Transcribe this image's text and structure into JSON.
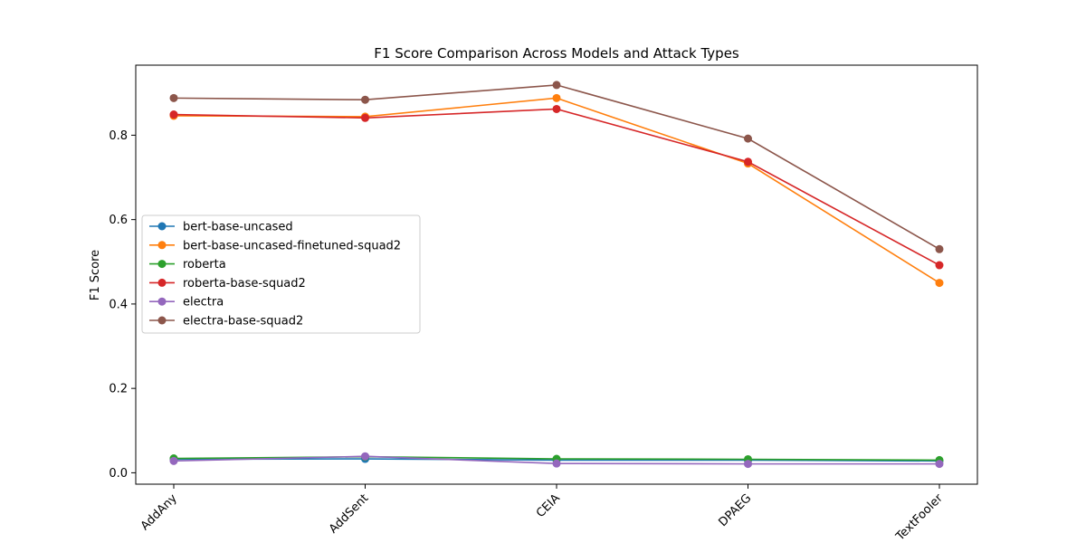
{
  "chart_data": {
    "type": "line",
    "title": "F1 Score Comparison Across Models and Attack Types",
    "xlabel": "",
    "ylabel": "F1 Score",
    "categories": [
      "AddAny",
      "AddSent",
      "CEIA",
      "DPAEG",
      "TextFooler"
    ],
    "ylim": [
      -0.027,
      0.966
    ],
    "yticks": [
      0.0,
      0.2,
      0.4,
      0.6,
      0.8
    ],
    "ytick_labels": [
      "0.0",
      "0.2",
      "0.4",
      "0.6",
      "0.8"
    ],
    "grid": false,
    "legend_position": "center-left",
    "series": [
      {
        "name": "bert-base-uncased",
        "color": "#1f77b4",
        "values": [
          0.032,
          0.033,
          0.03,
          0.03,
          0.028
        ]
      },
      {
        "name": "bert-base-uncased-finetuned-squad2",
        "color": "#ff7f0e",
        "values": [
          0.846,
          0.844,
          0.888,
          0.733,
          0.45
        ]
      },
      {
        "name": "roberta",
        "color": "#2ca02c",
        "values": [
          0.034,
          0.038,
          0.033,
          0.032,
          0.03
        ]
      },
      {
        "name": "roberta-base-squad2",
        "color": "#d62728",
        "values": [
          0.849,
          0.841,
          0.862,
          0.737,
          0.492
        ]
      },
      {
        "name": "electra",
        "color": "#9467bd",
        "values": [
          0.028,
          0.039,
          0.022,
          0.021,
          0.021
        ]
      },
      {
        "name": "electra-base-squad2",
        "color": "#8c564b",
        "values": [
          0.888,
          0.884,
          0.919,
          0.792,
          0.53
        ]
      }
    ]
  }
}
